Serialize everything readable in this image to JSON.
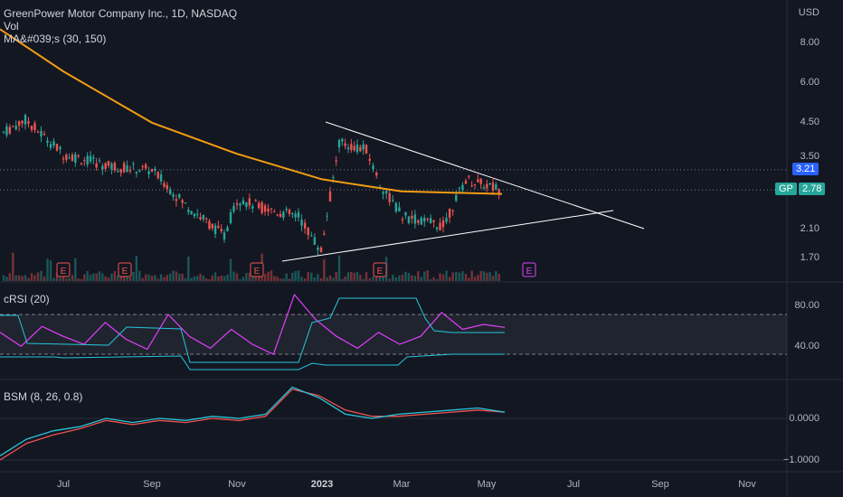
{
  "header": {
    "title": "GreenPower Motor Company Inc., 1D, NASDAQ",
    "vol_label": "Vol",
    "ma_label": "MA&#039;s (30, 150)",
    "currency": "USD"
  },
  "price_axis": {
    "ticks": [
      "8.00",
      "6.00",
      "4.50",
      "3.50",
      "2.10",
      "1.70"
    ],
    "last_price": "3.21",
    "current_price": "2.78",
    "symbol": "GP"
  },
  "crsi": {
    "label": "cRSI (20)",
    "ticks": [
      "80.00",
      "40.00"
    ]
  },
  "bsm": {
    "label": "BSM (8, 26, 0.8)",
    "ticks": [
      "0.0000",
      "−1.0000"
    ]
  },
  "earnings_marker": "E",
  "time_axis": [
    "Jul",
    "Sep",
    "Nov",
    "2023",
    "Mar",
    "May",
    "Jul",
    "Sep",
    "Nov"
  ],
  "colors": {
    "background": "#131722",
    "up": "#26a69a",
    "down": "#ef5350",
    "ma_long": "#f39c12",
    "crsi_line": "#e040fb",
    "crsi_band": "#26c6da",
    "bsm_fast": "#26c6da",
    "bsm_slow": "#ef5350",
    "trendline": "#ffffff",
    "earnings": "#ef5350",
    "earnings_future": "#e040fb"
  },
  "chart_data": [
    {
      "type": "candlestick",
      "title": "GreenPower Motor Company Inc., 1D, NASDAQ",
      "y_scale": "log",
      "y_range": [
        1.5,
        9.2
      ],
      "x_labels": [
        "Jul",
        "Sep",
        "Nov",
        "2023",
        "Mar",
        "May",
        "Jul",
        "Sep",
        "Nov"
      ],
      "price_points": [
        {
          "label": "Jun",
          "close": 4.2
        },
        {
          "label": "late Jun",
          "close": 4.6
        },
        {
          "label": "Jul",
          "close": 3.6
        },
        {
          "label": "Aug",
          "close": 3.3
        },
        {
          "label": "Sep",
          "close": 3.2
        },
        {
          "label": "early Oct",
          "close": 2.5
        },
        {
          "label": "Oct",
          "close": 2.0
        },
        {
          "label": "early Nov",
          "close": 2.6
        },
        {
          "label": "Nov",
          "close": 2.4
        },
        {
          "label": "Dec",
          "close": 2.3
        },
        {
          "label": "late Dec",
          "close": 1.8
        },
        {
          "label": "Jan",
          "close": 3.9
        },
        {
          "label": "Feb",
          "close": 3.7
        },
        {
          "label": "late Feb",
          "close": 2.9
        },
        {
          "label": "Mar",
          "close": 2.3
        },
        {
          "label": "early Apr",
          "close": 2.15
        },
        {
          "label": "Apr",
          "close": 3.0
        },
        {
          "label": "May",
          "close": 2.78
        }
      ],
      "moving_average_150": [
        {
          "label": "Jun",
          "value": 8.8
        },
        {
          "label": "Jul",
          "value": 6.5
        },
        {
          "label": "Sep",
          "value": 4.5
        },
        {
          "label": "Nov",
          "value": 3.6
        },
        {
          "label": "2023",
          "value": 3.0
        },
        {
          "label": "Mar",
          "value": 2.75
        },
        {
          "label": "May",
          "value": 2.7
        }
      ],
      "annotations": [
        "Symmetrical triangle trendlines converging near Jul–Aug"
      ],
      "last_price": 3.21,
      "current_price": 2.78
    },
    {
      "type": "line",
      "title": "cRSI (20)",
      "y_ticks": [
        80,
        40
      ],
      "levels": [
        70,
        30
      ],
      "series": [
        {
          "values": [
            52,
            38,
            58,
            48,
            40,
            62,
            45,
            35,
            70,
            48,
            36,
            55,
            40,
            30,
            90,
            65,
            48,
            36,
            52,
            40,
            48,
            72,
            55,
            60,
            57
          ]
        }
      ]
    },
    {
      "type": "line",
      "title": "BSM (8, 26, 0.8)",
      "y_ticks": [
        0,
        -1
      ],
      "series": [
        {
          "values": [
            -0.9,
            -0.5,
            -0.3,
            -0.2,
            0.0,
            -0.1,
            0.0,
            -0.05,
            0.05,
            0.0,
            0.1,
            0.75,
            0.5,
            0.1,
            0.0,
            0.1,
            0.15,
            0.2,
            0.25,
            0.15
          ]
        },
        {
          "values": [
            -1.0,
            -0.6,
            -0.4,
            -0.25,
            -0.05,
            -0.15,
            -0.05,
            -0.1,
            0.0,
            -0.05,
            0.05,
            0.7,
            0.55,
            0.2,
            0.05,
            0.05,
            0.1,
            0.15,
            0.2,
            0.15
          ]
        }
      ]
    }
  ]
}
